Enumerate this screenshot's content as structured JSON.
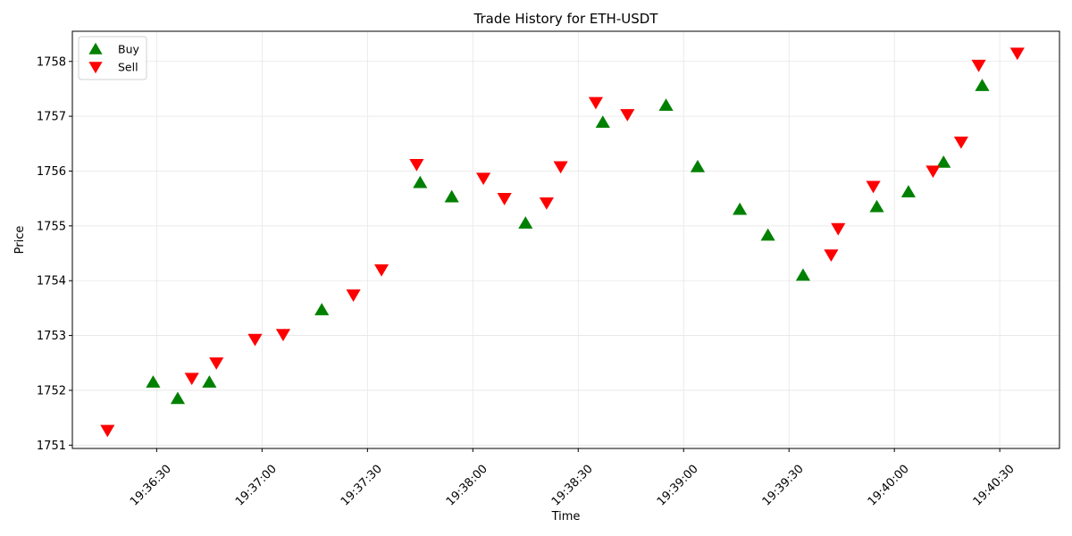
{
  "chart_data": {
    "type": "scatter",
    "title": "Trade History for ETH-USDT",
    "xlabel": "Time",
    "ylabel": "Price",
    "x_type": "time",
    "xlim": [
      "19:36:06",
      "19:40:47"
    ],
    "ylim": [
      1750.94,
      1758.55
    ],
    "xticks": [
      "19:36:30",
      "19:37:00",
      "19:37:30",
      "19:38:00",
      "19:38:30",
      "19:39:00",
      "19:39:30",
      "19:40:00",
      "19:40:30"
    ],
    "yticks": [
      1751,
      1752,
      1753,
      1754,
      1755,
      1756,
      1757,
      1758
    ],
    "grid": true,
    "legend_position": "top-left",
    "series": [
      {
        "name": "Buy",
        "marker": "triangle-up",
        "color": "#008000",
        "points": [
          {
            "x": "19:36:29",
            "y": 1752.15
          },
          {
            "x": "19:36:36",
            "y": 1751.85
          },
          {
            "x": "19:36:45",
            "y": 1752.15
          },
          {
            "x": "19:37:17",
            "y": 1753.47
          },
          {
            "x": "19:37:45",
            "y": 1755.79
          },
          {
            "x": "19:37:54",
            "y": 1755.53
          },
          {
            "x": "19:38:15",
            "y": 1755.05
          },
          {
            "x": "19:38:37",
            "y": 1756.89
          },
          {
            "x": "19:38:55",
            "y": 1757.2
          },
          {
            "x": "19:39:04",
            "y": 1756.08
          },
          {
            "x": "19:39:16",
            "y": 1755.3
          },
          {
            "x": "19:39:24",
            "y": 1754.83
          },
          {
            "x": "19:39:34",
            "y": 1754.1
          },
          {
            "x": "19:39:55",
            "y": 1755.35
          },
          {
            "x": "19:40:04",
            "y": 1755.62
          },
          {
            "x": "19:40:14",
            "y": 1756.16
          },
          {
            "x": "19:40:25",
            "y": 1757.56
          }
        ]
      },
      {
        "name": "Sell",
        "marker": "triangle-down",
        "color": "#ff0000",
        "points": [
          {
            "x": "19:36:16",
            "y": 1751.27
          },
          {
            "x": "19:36:40",
            "y": 1752.22
          },
          {
            "x": "19:36:47",
            "y": 1752.5
          },
          {
            "x": "19:36:58",
            "y": 1752.93
          },
          {
            "x": "19:37:06",
            "y": 1753.02
          },
          {
            "x": "19:37:26",
            "y": 1753.74
          },
          {
            "x": "19:37:34",
            "y": 1754.2
          },
          {
            "x": "19:37:44",
            "y": 1756.12
          },
          {
            "x": "19:38:03",
            "y": 1755.87
          },
          {
            "x": "19:38:09",
            "y": 1755.5
          },
          {
            "x": "19:38:21",
            "y": 1755.42
          },
          {
            "x": "19:38:25",
            "y": 1756.08
          },
          {
            "x": "19:38:35",
            "y": 1757.25
          },
          {
            "x": "19:38:44",
            "y": 1757.03
          },
          {
            "x": "19:39:42",
            "y": 1754.47
          },
          {
            "x": "19:39:44",
            "y": 1754.95
          },
          {
            "x": "19:39:54",
            "y": 1755.72
          },
          {
            "x": "19:40:11",
            "y": 1756.0
          },
          {
            "x": "19:40:19",
            "y": 1756.53
          },
          {
            "x": "19:40:24",
            "y": 1757.93
          },
          {
            "x": "19:40:35",
            "y": 1758.15
          }
        ]
      }
    ]
  }
}
